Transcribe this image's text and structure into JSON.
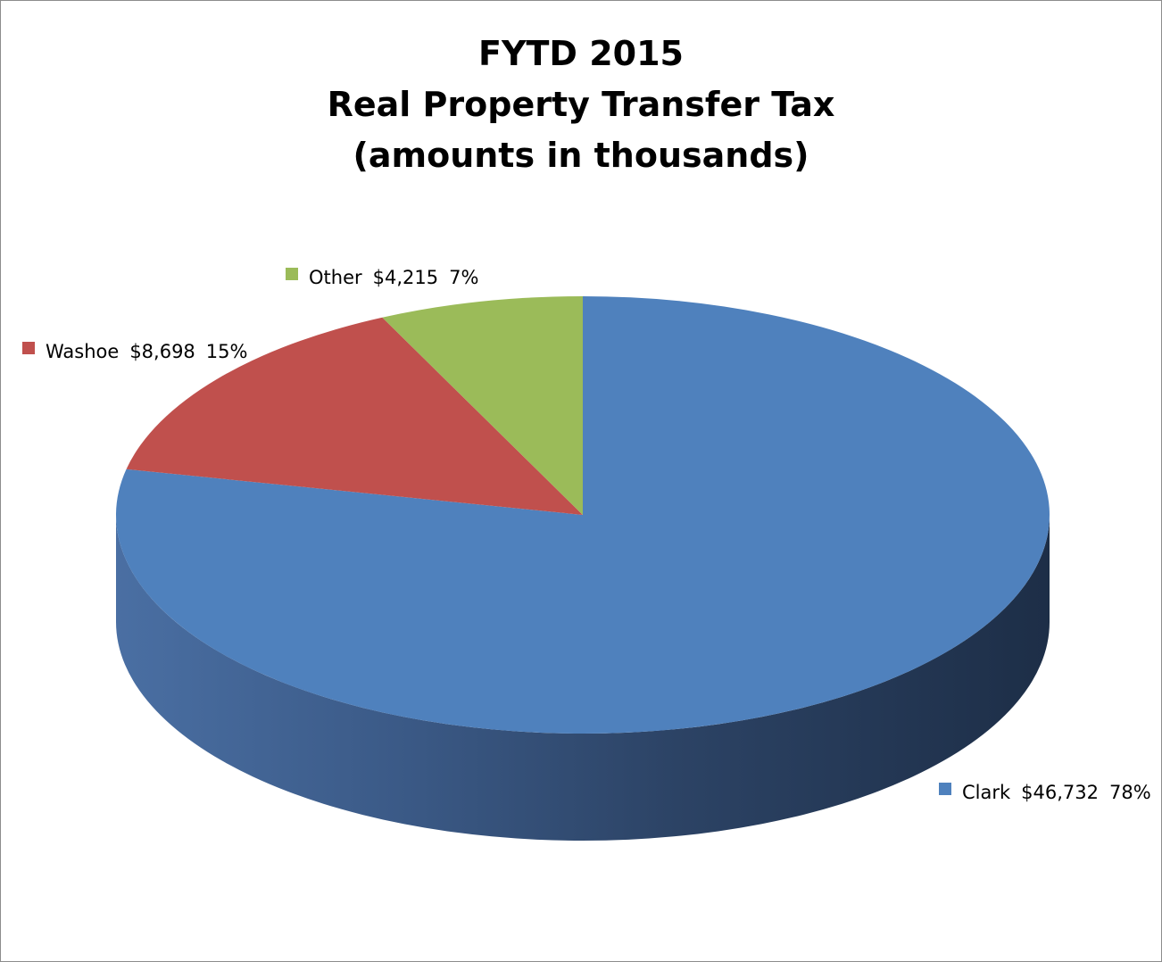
{
  "chart_data": {
    "type": "pie",
    "title_lines": [
      "FYTD 2015",
      "Real Property Transfer Tax",
      "(amounts in thousands)"
    ],
    "slices": [
      {
        "name": "Clark",
        "value": 46732,
        "value_label": "$46,732",
        "percent_label": "78%",
        "color": "#4f81bd"
      },
      {
        "name": "Washoe",
        "value": 8698,
        "value_label": "$8,698",
        "percent_label": "15%",
        "color": "#c0504d"
      },
      {
        "name": "Other",
        "value": 4215,
        "value_label": "$4,215",
        "percent_label": "7%",
        "color": "#9bbb59"
      }
    ],
    "style": "3d",
    "legend": "none"
  }
}
